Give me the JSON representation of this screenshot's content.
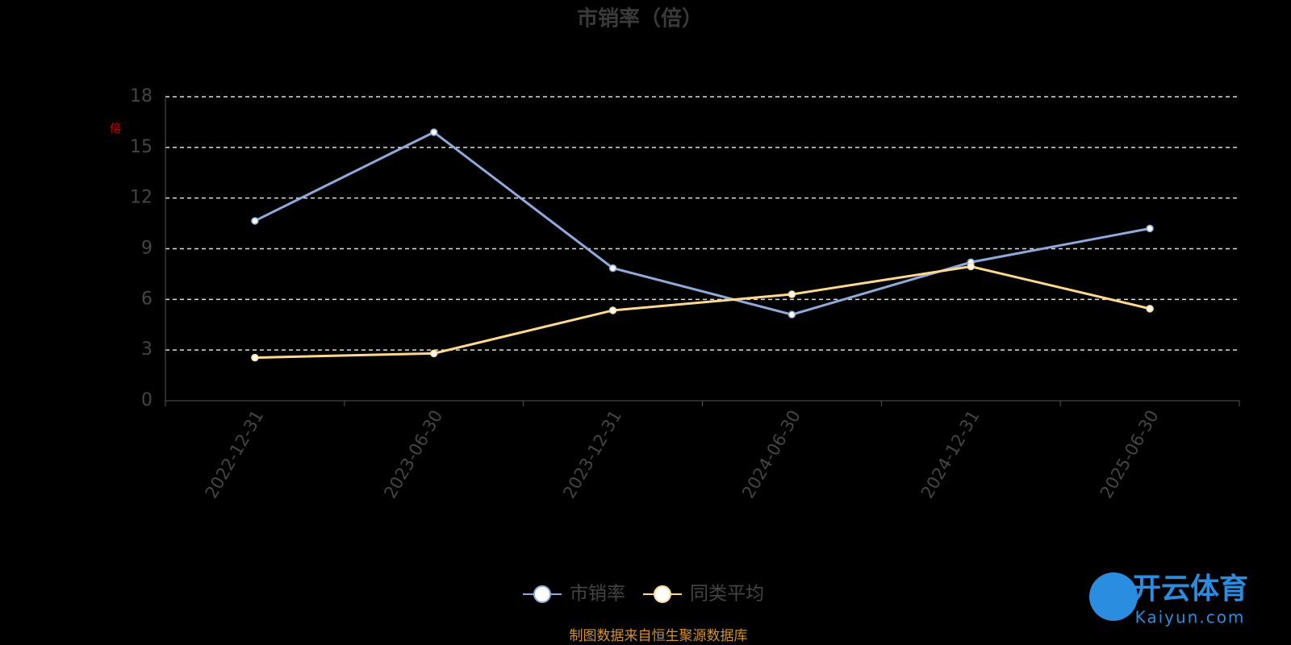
{
  "chart_data": {
    "type": "line",
    "title": "市销率（倍）",
    "y_label": "倍",
    "categories": [
      "2022-12-31",
      "2023-06-30",
      "2023-12-31",
      "2024-06-30",
      "2024-12-31",
      "2025-06-30"
    ],
    "series": [
      {
        "name": "市销率",
        "color": "#8eaadb",
        "values": [
          10.65,
          15.9,
          7.85,
          5.1,
          8.2,
          10.2
        ]
      },
      {
        "name": "同类平均",
        "color": "#ffd98f",
        "values": [
          2.55,
          2.8,
          5.35,
          6.3,
          7.95,
          5.45
        ]
      }
    ],
    "ylim": [
      0,
      18
    ],
    "yticks": [
      0,
      3,
      6,
      9,
      12,
      15,
      18
    ],
    "grid": true,
    "source": "制图数据来自恒生聚源数据库"
  },
  "watermark": {
    "brand": "开云体育",
    "site": "Kaiyun.com"
  }
}
